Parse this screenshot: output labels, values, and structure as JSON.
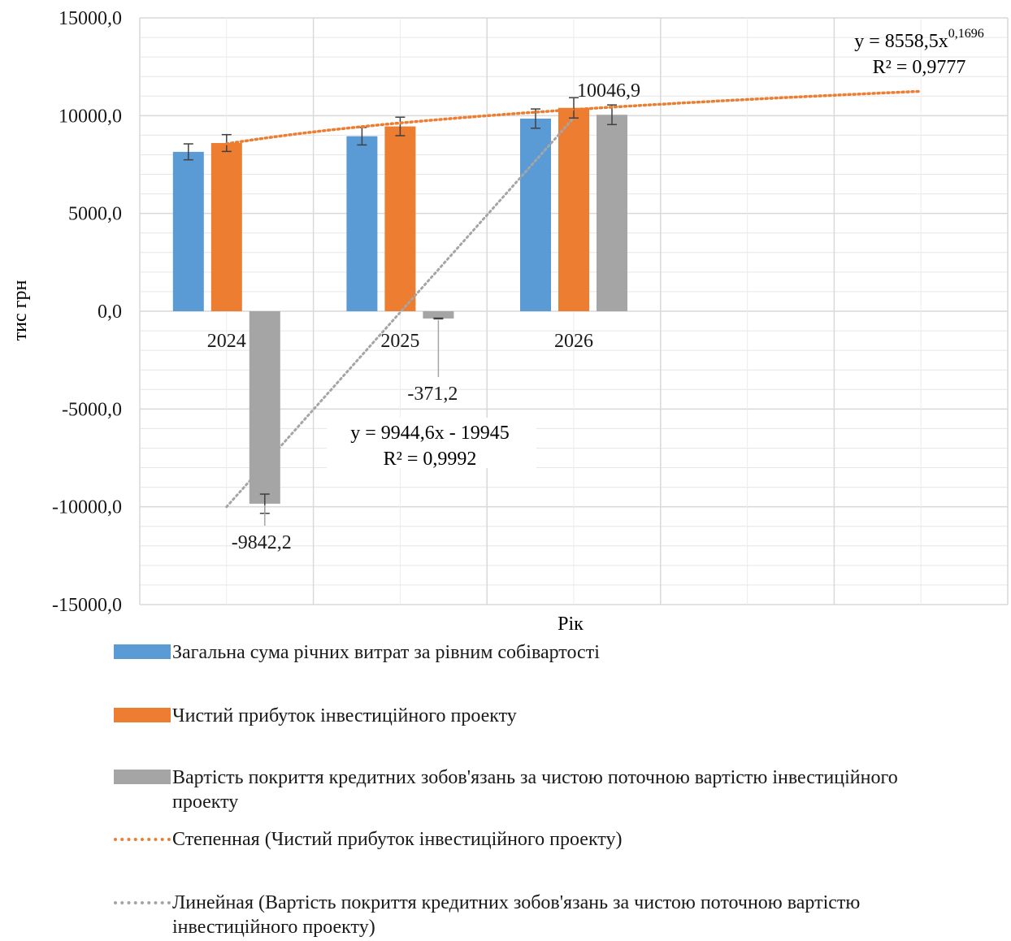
{
  "chart_data": {
    "type": "bar",
    "categories": [
      "2024",
      "2025",
      "2026"
    ],
    "ylabel": "тис грн",
    "xlabel": "Рік",
    "ylim": [
      -15000,
      15000
    ],
    "y_ticks": [
      "15000,0",
      "10000,0",
      "5000,0",
      "0,0",
      "-5000,0",
      "-10000,0",
      "-15000,0"
    ],
    "series": [
      {
        "name": "Загальна сума річних витрат за рівним собівартості",
        "values": [
          8150,
          8950,
          9850
        ],
        "color": "#5b9bd5"
      },
      {
        "name": "Чистий прибуток інвестиційного проекту",
        "values": [
          8600,
          9450,
          10400
        ],
        "color": "#ed7d31"
      },
      {
        "name": "Вартість покриття кредитних зобов'язань за чистою поточною вартістю інвестиційного проекту",
        "values": [
          -9842.2,
          -371.2,
          10046.9
        ],
        "color": "#a5a5a5"
      }
    ],
    "data_labels": [
      "-9842,2",
      "-371,2",
      "10046,9"
    ],
    "trendlines": [
      {
        "name": "Степенная (Чистий прибуток інвестиційного проекту)",
        "type": "power",
        "equation": "y = 8558,5x",
        "exponent": "0,1696",
        "r2": "R² = 0,9777",
        "color": "#ed7d31"
      },
      {
        "name": "Линейная (Вартість покриття кредитних зобов'язань за чистою поточною вартістю інвестиційного проекту)",
        "type": "linear",
        "equation": "y = 9944,6x - 19945",
        "r2": "R² = 0,9992",
        "color": "#a5a5a5"
      }
    ],
    "grid": true,
    "legend_position": "bottom"
  }
}
